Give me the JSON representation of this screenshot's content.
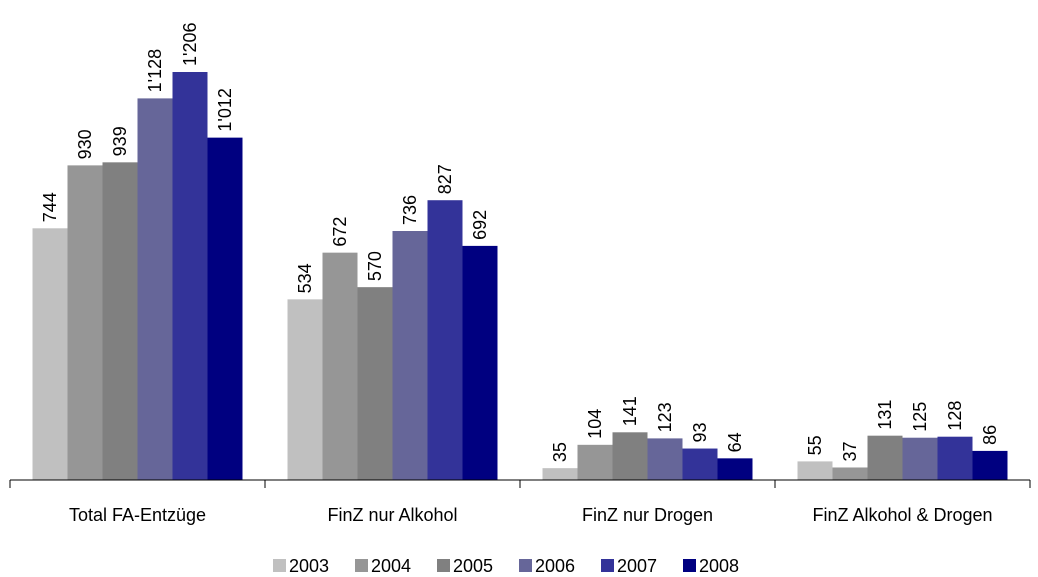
{
  "chart_data": {
    "type": "bar",
    "categories": [
      "Total FA-Entzüge",
      "FinZ nur Alkohol",
      "FinZ nur Drogen",
      "FinZ Alkohol & Drogen"
    ],
    "series": [
      {
        "name": "2003",
        "color": "#c0c0c0",
        "values": [
          744,
          534,
          35,
          55
        ],
        "value_labels": [
          "744",
          "534",
          "35",
          "55"
        ]
      },
      {
        "name": "2004",
        "color": "#969696",
        "values": [
          930,
          672,
          104,
          37
        ],
        "value_labels": [
          "930",
          "672",
          "104",
          "37"
        ]
      },
      {
        "name": "2005",
        "color": "#808080",
        "values": [
          939,
          570,
          141,
          131
        ],
        "value_labels": [
          "939",
          "570",
          "141",
          "131"
        ]
      },
      {
        "name": "2006",
        "color": "#666699",
        "values": [
          1128,
          736,
          123,
          125
        ],
        "value_labels": [
          "1'128",
          "736",
          "123",
          "125"
        ]
      },
      {
        "name": "2007",
        "color": "#333399",
        "values": [
          1206,
          827,
          93,
          128
        ],
        "value_labels": [
          "1'206",
          "827",
          "93",
          "128"
        ]
      },
      {
        "name": "2008",
        "color": "#000080",
        "values": [
          1012,
          692,
          64,
          86
        ],
        "value_labels": [
          "1'012",
          "692",
          "64",
          "86"
        ]
      }
    ],
    "legend": "bottom"
  }
}
